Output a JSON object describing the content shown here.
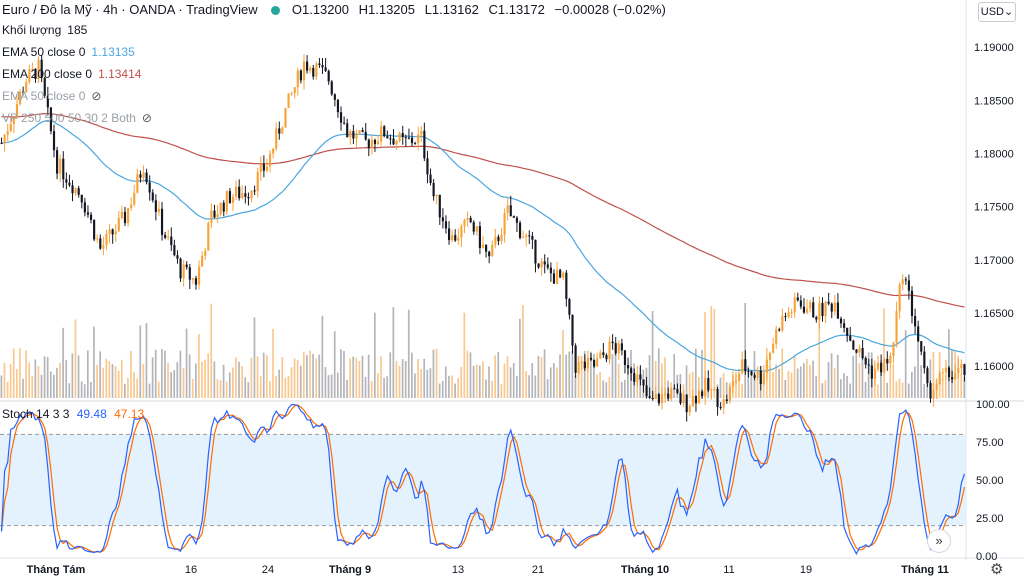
{
  "header": {
    "symbol": "Euro / Đô la Mỹ",
    "interval": "4h",
    "exchange": "OANDA",
    "platform": "TradingView",
    "open": "O1.13200",
    "high": "H1.13205",
    "low": "L1.13162",
    "close": "C1.13172",
    "change": "−0.00028 (−0.02%)",
    "currency": "USD"
  },
  "indicators": {
    "volume_label": "Khối lượng",
    "volume_value": "185",
    "ema50_label": "EMA 50 close 0",
    "ema50_value": "1.13135",
    "ema200_label": "EMA 200 close 0",
    "ema200_value": "1.13414",
    "ema50b_label": "EMA 50 close 0",
    "vp_label": "VP 250 500 50 30 2 Both",
    "stoch_label": "Stoch 14 3 3",
    "stoch_k": "49.48",
    "stoch_d": "47.13"
  },
  "colors": {
    "up": "#f7a33a",
    "down": "#131722",
    "ema50": "#4ba6e0",
    "ema200": "#c0504d",
    "vol_up": "#f9c88f",
    "vol_down": "#b3b5b9",
    "stoch_k": "#2962ff",
    "stoch_d": "#ff6d00",
    "band": "#e3f2fd"
  },
  "chart_data": [
    {
      "type": "candlestick",
      "title": "",
      "price_ticks": [
        "1.19000",
        "1.18500",
        "1.18000",
        "1.17500",
        "1.17000",
        "1.16500",
        "1.16000"
      ],
      "x_ticks": [
        "Tháng Tám",
        "16",
        "24",
        "Tháng 9",
        "13",
        "21",
        "Tháng 10",
        "11",
        "19",
        "Tháng 11"
      ],
      "ylim": [
        1.157,
        1.1935
      ],
      "candles": [],
      "ema50": [],
      "ema200": []
    },
    {
      "type": "line",
      "title": "",
      "ylim": [
        0,
        100
      ],
      "y_ticks": [
        "100.00",
        "75.00",
        "50.00",
        "25.00",
        "0.00"
      ],
      "band": [
        20,
        80
      ],
      "k": [],
      "d": []
    }
  ]
}
